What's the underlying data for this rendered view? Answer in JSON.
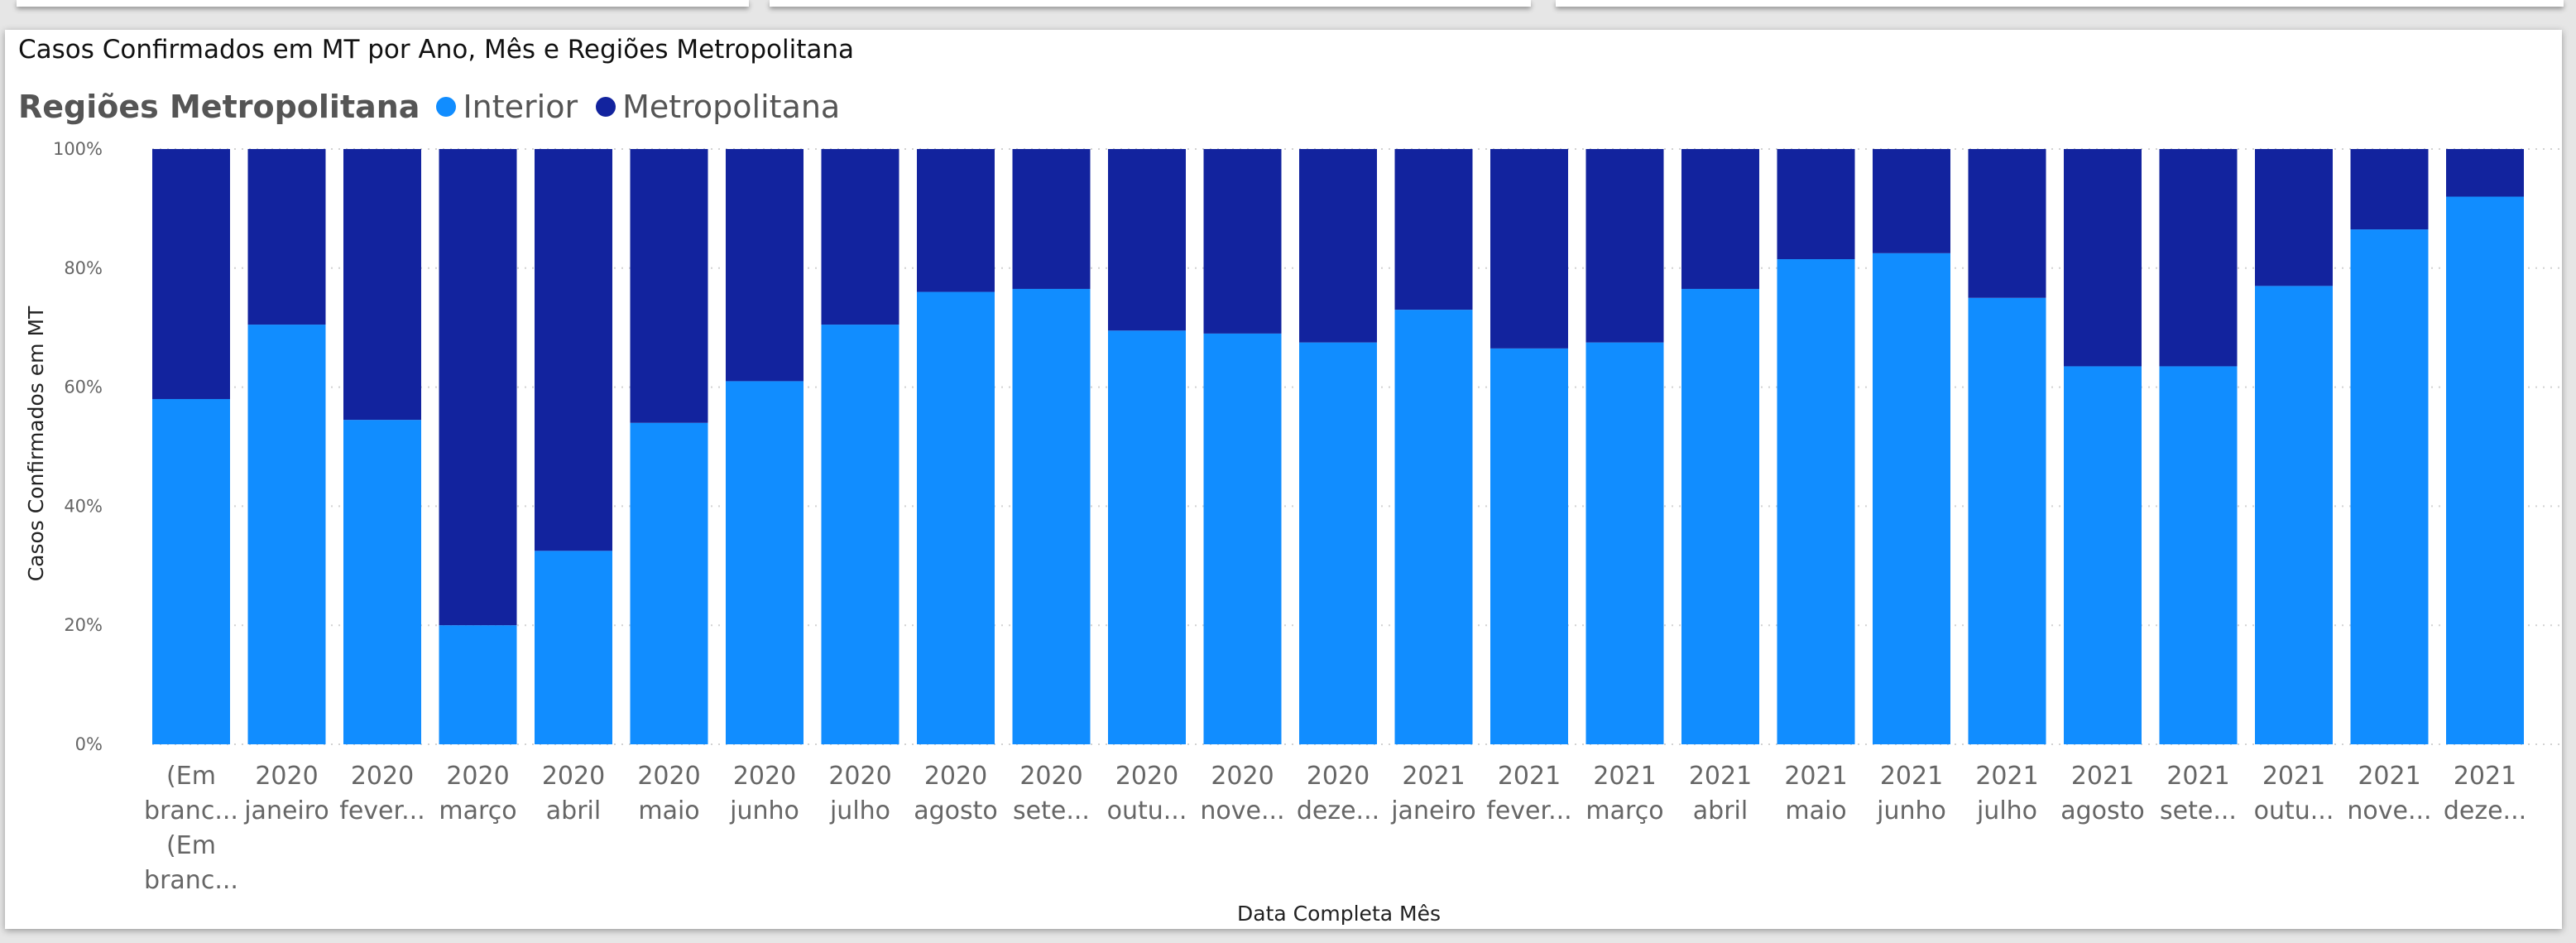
{
  "chart_data": {
    "type": "bar",
    "stacked_percent": true,
    "title": "Casos Confirmados em MT por Ano, Mês e Regiões Metropolitana",
    "xlabel": "Data Completa Mês",
    "ylabel": "Casos Confirmados em MT",
    "ylim": [
      0,
      100
    ],
    "y_ticks": [
      "0%",
      "20%",
      "40%",
      "60%",
      "80%",
      "100%"
    ],
    "grid": true,
    "legend": {
      "title": "Regiões Metropolitana",
      "placement": "top-left",
      "entries": [
        "Interior",
        "Metropolitana"
      ]
    },
    "categories": [
      [
        "(Em",
        "branc...",
        "(Em",
        "branc..."
      ],
      [
        "2020",
        "janeiro"
      ],
      [
        "2020",
        "fever..."
      ],
      [
        "2020",
        "março"
      ],
      [
        "2020",
        "abril"
      ],
      [
        "2020",
        "maio"
      ],
      [
        "2020",
        "junho"
      ],
      [
        "2020",
        "julho"
      ],
      [
        "2020",
        "agosto"
      ],
      [
        "2020",
        "sete..."
      ],
      [
        "2020",
        "outu..."
      ],
      [
        "2020",
        "nove..."
      ],
      [
        "2020",
        "deze..."
      ],
      [
        "2021",
        "janeiro"
      ],
      [
        "2021",
        "fever..."
      ],
      [
        "2021",
        "março"
      ],
      [
        "2021",
        "abril"
      ],
      [
        "2021",
        "maio"
      ],
      [
        "2021",
        "junho"
      ],
      [
        "2021",
        "julho"
      ],
      [
        "2021",
        "agosto"
      ],
      [
        "2021",
        "sete..."
      ],
      [
        "2021",
        "outu..."
      ],
      [
        "2021",
        "nove..."
      ],
      [
        "2021",
        "deze..."
      ]
    ],
    "series": [
      {
        "name": "Interior",
        "color": "#118dff",
        "values": [
          58,
          70.5,
          54.5,
          20,
          32.5,
          54,
          61,
          70.5,
          76,
          76.5,
          69.5,
          69,
          67.5,
          73,
          66.5,
          67.5,
          76.5,
          81.5,
          82.5,
          75,
          63.5,
          63.5,
          77,
          86.5,
          92
        ]
      },
      {
        "name": "Metropolitana",
        "color": "#12239e",
        "values": [
          42,
          29.5,
          45.5,
          80,
          67.5,
          46,
          39,
          29.5,
          24,
          23.5,
          30.5,
          31,
          32.5,
          27,
          33.5,
          32.5,
          23.5,
          18.5,
          17.5,
          25,
          36.5,
          36.5,
          23,
          13.5,
          8
        ]
      }
    ]
  }
}
